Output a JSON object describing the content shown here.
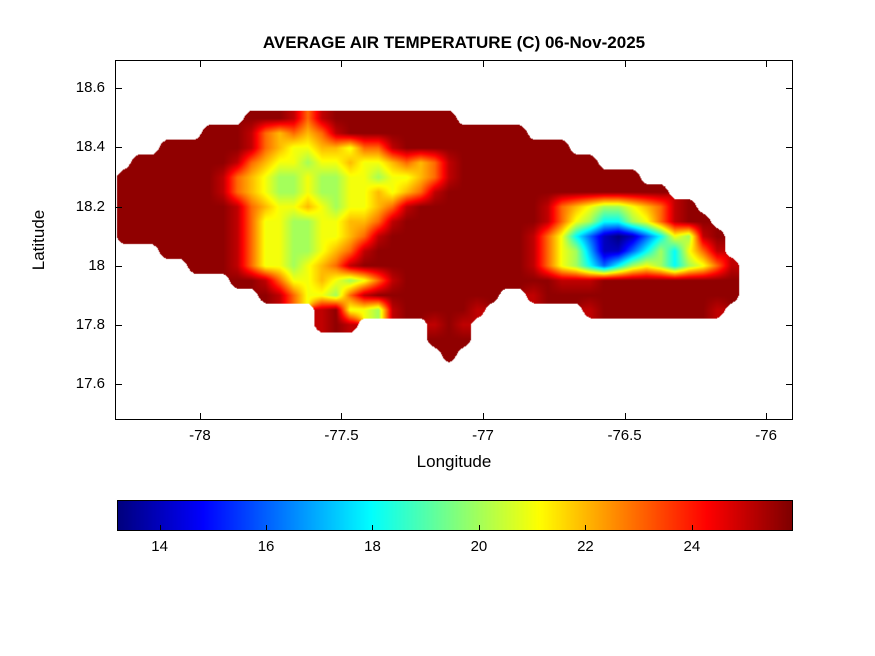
{
  "figure": {
    "title": "AVERAGE AIR TEMPERATURE (C) 06-Nov-2025",
    "xlabel": "Longitude",
    "ylabel": "Latitude"
  },
  "chart_data": {
    "type": "heatmap",
    "title": "AVERAGE AIR TEMPERATURE (C) 06-Nov-2025",
    "xlabel": "Longitude",
    "ylabel": "Latitude",
    "units": "C",
    "xlim": [
      -78.3,
      -75.905
    ],
    "ylim": [
      17.48,
      18.695
    ],
    "xticks": [
      "-78",
      "-77.5",
      "-77",
      "-76.5",
      "-76"
    ],
    "yticks": [
      "18.6",
      "18.4",
      "18.2",
      "18",
      "17.8",
      "17.6"
    ],
    "grid_on": false,
    "colorbar": {
      "orientation": "horizontal",
      "colormap": "jet",
      "cmin": 13.2,
      "cmax": 25.9,
      "ticks": [
        "14",
        "16",
        "18",
        "20",
        "22",
        "24"
      ]
    },
    "grid": {
      "comment": "Temperature field over the island; rows top-to-bottom by latitude, cols west-to-east by longitude; '.' = sea (no data)",
      "lon_start": -78.27,
      "lon_step": 0.05,
      "lat_start": 18.5,
      "lat_step": 0.05,
      "encoding": {
        ".": null,
        "a": 13.2,
        "b": 14,
        "c": 15,
        "d": 16,
        "e": 17,
        "f": 18,
        "g": 19,
        "h": 20,
        "i": 21,
        "j": 22,
        "k": 23,
        "l": 24,
        "m": 25.1,
        "n": 25.7
      },
      "rows": [
        ".........nnnmkmnnnnnnnnn....................",
        "......nnnmkjkjkmnnnnnnnnnnnnn...............",
        "...nnnnnnmkjiijjikkmnnnnnnnnnnnn............",
        ".nnnnnnnmkjiihiijiijkjkmnnnnnnnnnn..........",
        "nnnnnnnmkjihhihhiihiijkmnnnnnnnnnnnnn.......",
        "nnnnnnnmkjihhihhiijijkmnnnnnnnnnnnnnnnn.....",
        "nnnnnnnnmkjiijihiijkmnnnnnnnnnmkjihhijkmn...",
        "nnnnnnnnmkiihhiijjkmnnnnnnnnnnmkihffhikmnn..",
        "nnnnnnnnmkiihhiijkmnnnnnnnnnnmkifdbabdfihmn.",
        "...nnnnnmkiihhijkmnnnnnnnnnnnmkihebbdfhfikm.",
        ".....nnnmkiihijkmnnnnnnnnnnnnmkihfdfhihfhikm",
        "........nnmkiijihikmnnnnnnnnnnnmmmnnnnnnnnnn",
        "..........nmkiihkmnnnnnnnnn..mnnnnnnnnnnnnnn",
        "..............mniihmnnnnnm.......mnnnnnnnnm.",
        "..............mnm.....mnm...................",
        "......................nnn...................",
        ".......................n...................."
      ]
    }
  }
}
